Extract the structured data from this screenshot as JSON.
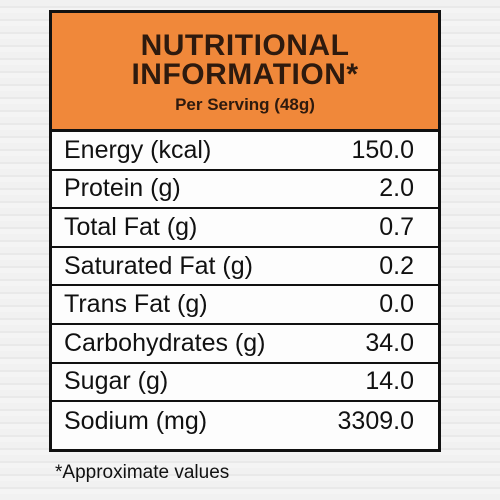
{
  "header": {
    "title_lines": [
      "NUTRITIONAL",
      "INFORMATION*"
    ],
    "subtitle": "Per Serving (48g)"
  },
  "table": {
    "rows": [
      [
        "Energy (kcal)",
        "150.0"
      ],
      [
        "Protein (g)",
        "2.0"
      ],
      [
        "Total Fat (g)",
        "0.7"
      ],
      [
        "Saturated Fat (g)",
        "0.2"
      ],
      [
        "Trans Fat (g)",
        "0.0"
      ],
      [
        "Carbohydrates (g)",
        "34.0"
      ],
      [
        "Sugar (g)",
        "14.0"
      ],
      [
        "Sodium (mg)",
        "3309.0"
      ]
    ]
  },
  "footnote": "*Approximate values"
}
